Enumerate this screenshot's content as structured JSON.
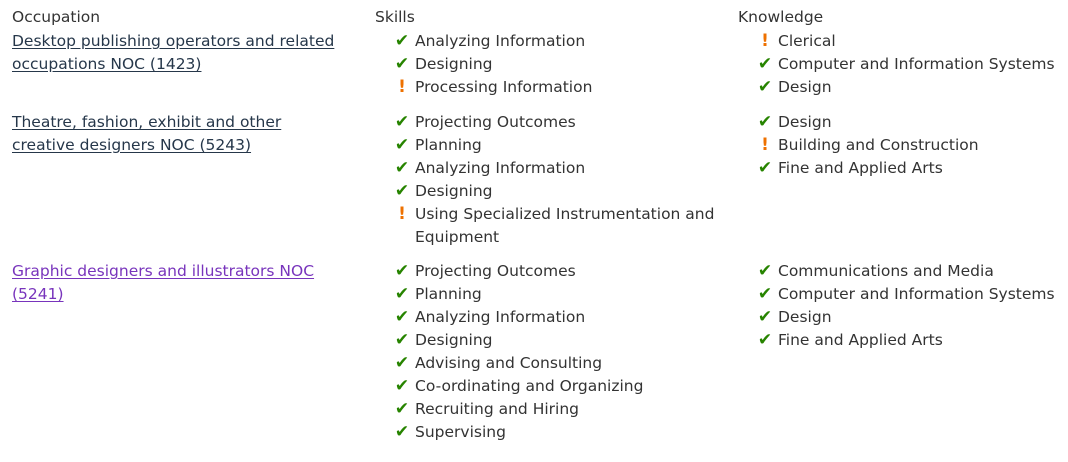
{
  "headers": {
    "occupation": "Occupation",
    "skills": "Skills",
    "knowledge": "Knowledge"
  },
  "colors": {
    "link": "#26374a",
    "visited_link": "#7834bc",
    "check": "#278400",
    "warning": "#ee7100"
  },
  "rows": [
    {
      "occupation": "Desktop publishing operators and related occupations NOC (1423)",
      "visited": false,
      "skills": [
        {
          "label": "Analyzing Information",
          "status": "check"
        },
        {
          "label": "Designing",
          "status": "check"
        },
        {
          "label": "Processing Information",
          "status": "warning"
        }
      ],
      "knowledge": [
        {
          "label": "Clerical",
          "status": "warning"
        },
        {
          "label": "Computer and Information Systems",
          "status": "check"
        },
        {
          "label": "Design",
          "status": "check"
        }
      ]
    },
    {
      "occupation": "Theatre, fashion, exhibit and other creative designers NOC (5243)",
      "visited": false,
      "skills": [
        {
          "label": "Projecting Outcomes",
          "status": "check"
        },
        {
          "label": "Planning",
          "status": "check"
        },
        {
          "label": "Analyzing Information",
          "status": "check"
        },
        {
          "label": "Designing",
          "status": "check"
        },
        {
          "label": "Using Specialized Instrumentation and Equipment",
          "status": "warning"
        }
      ],
      "knowledge": [
        {
          "label": "Design",
          "status": "check"
        },
        {
          "label": "Building and Construction",
          "status": "warning"
        },
        {
          "label": "Fine and Applied Arts",
          "status": "check"
        }
      ]
    },
    {
      "occupation": "Graphic designers and illustrators NOC (5241)",
      "visited": true,
      "skills": [
        {
          "label": "Projecting Outcomes",
          "status": "check"
        },
        {
          "label": "Planning",
          "status": "check"
        },
        {
          "label": "Analyzing Information",
          "status": "check"
        },
        {
          "label": "Designing",
          "status": "check"
        },
        {
          "label": "Advising and Consulting",
          "status": "check"
        },
        {
          "label": "Co-ordinating and Organizing",
          "status": "check"
        },
        {
          "label": "Recruiting and Hiring",
          "status": "check"
        },
        {
          "label": "Supervising",
          "status": "check"
        }
      ],
      "knowledge": [
        {
          "label": "Communications and Media",
          "status": "check"
        },
        {
          "label": "Computer and Information Systems",
          "status": "check"
        },
        {
          "label": "Design",
          "status": "check"
        },
        {
          "label": "Fine and Applied Arts",
          "status": "check"
        }
      ]
    }
  ]
}
